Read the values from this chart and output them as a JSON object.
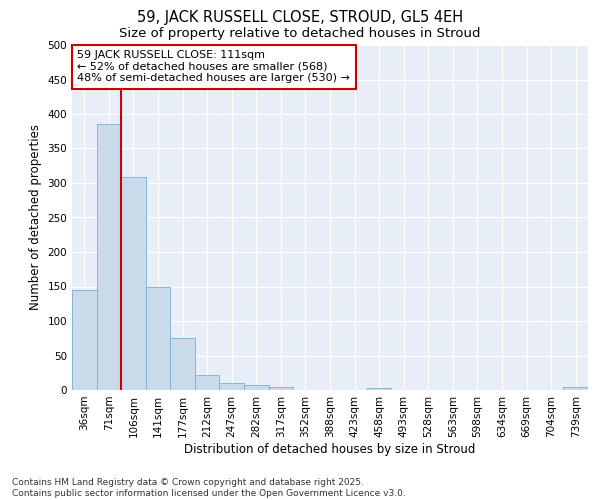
{
  "title_line1": "59, JACK RUSSELL CLOSE, STROUD, GL5 4EH",
  "title_line2": "Size of property relative to detached houses in Stroud",
  "xlabel": "Distribution of detached houses by size in Stroud",
  "ylabel": "Number of detached properties",
  "bar_labels": [
    "36sqm",
    "71sqm",
    "106sqm",
    "141sqm",
    "177sqm",
    "212sqm",
    "247sqm",
    "282sqm",
    "317sqm",
    "352sqm",
    "388sqm",
    "423sqm",
    "458sqm",
    "493sqm",
    "528sqm",
    "563sqm",
    "598sqm",
    "634sqm",
    "669sqm",
    "704sqm",
    "739sqm"
  ],
  "bar_values": [
    145,
    385,
    308,
    150,
    75,
    22,
    10,
    7,
    4,
    0,
    0,
    0,
    3,
    0,
    0,
    0,
    0,
    0,
    0,
    0,
    4
  ],
  "bar_color": "#c9daea",
  "bar_edgecolor": "#7aafd4",
  "vline_color": "#cc0000",
  "annotation_text": "59 JACK RUSSELL CLOSE: 111sqm\n← 52% of detached houses are smaller (568)\n48% of semi-detached houses are larger (530) →",
  "annotation_box_color": "#ffffff",
  "annotation_box_edgecolor": "#cc0000",
  "ylim": [
    0,
    500
  ],
  "yticks": [
    0,
    50,
    100,
    150,
    200,
    250,
    300,
    350,
    400,
    450,
    500
  ],
  "background_color": "#e8eef8",
  "grid_color": "#ffffff",
  "footer_line1": "Contains HM Land Registry data © Crown copyright and database right 2025.",
  "footer_line2": "Contains public sector information licensed under the Open Government Licence v3.0.",
  "title_fontsize": 10.5,
  "subtitle_fontsize": 9.5,
  "axis_label_fontsize": 8.5,
  "tick_fontsize": 7.5,
  "annotation_fontsize": 8,
  "footer_fontsize": 6.5
}
